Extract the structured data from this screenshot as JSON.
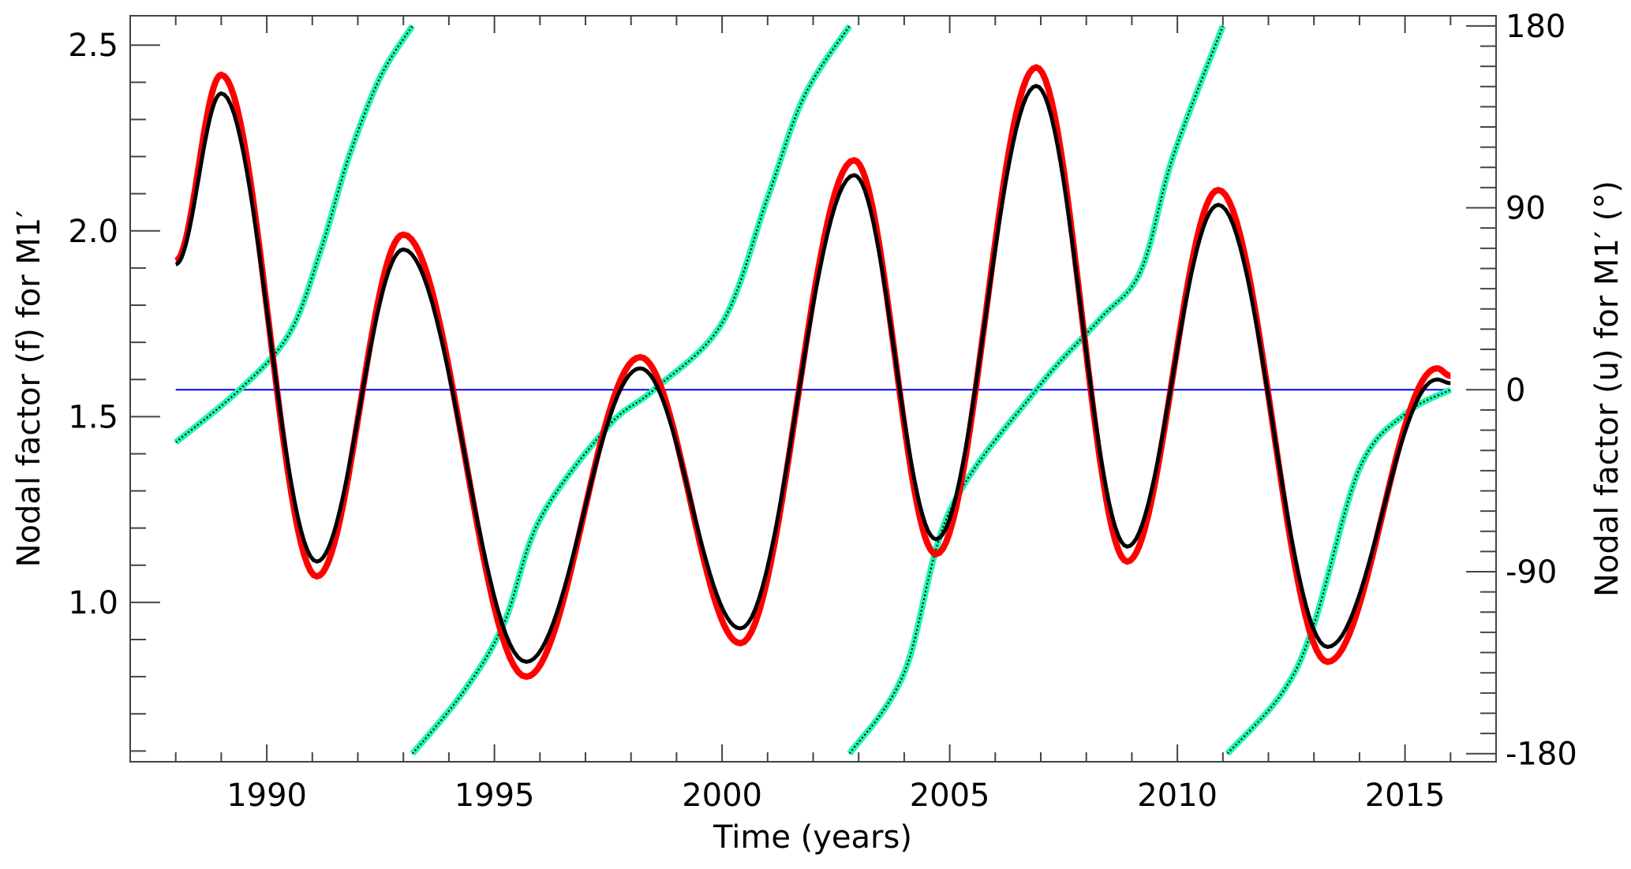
{
  "chart_data": {
    "type": "line",
    "xlabel": "Time (years)",
    "ylabel_left": "Nodal factor (f) for M1′",
    "ylabel_right": "Nodal factor (u) for M1′ (°)",
    "xlim": [
      1987,
      2017
    ],
    "ylim_left": [
      0.571,
      2.579
    ],
    "ylim_right": [
      -184,
      185
    ],
    "x_ticks": [
      "1990",
      "1995",
      "2000",
      "2005",
      "2010",
      "2015"
    ],
    "x_tick_values": [
      1990,
      1995,
      2000,
      2005,
      2010,
      2015
    ],
    "y_left_ticks": [
      "1.0",
      "1.5",
      "2.0",
      "2.5"
    ],
    "y_left_tick_values": [
      1.0,
      1.5,
      2.0,
      2.5
    ],
    "y_right_ticks": [
      "-180",
      "-90",
      "0",
      "90",
      "180"
    ],
    "y_right_tick_values": [
      -180,
      -90,
      0,
      90,
      180
    ],
    "grid": false,
    "series": [
      {
        "name": "f (red)",
        "axis": "left",
        "color": "#ff0000",
        "interp": "extrema",
        "points": [
          [
            1988.0,
            1.92
          ],
          [
            1989.0,
            2.42
          ],
          [
            1991.1,
            1.07
          ],
          [
            1993.0,
            1.99
          ],
          [
            1995.7,
            0.8
          ],
          [
            1998.2,
            1.66
          ],
          [
            2000.4,
            0.89
          ],
          [
            2002.9,
            2.19
          ],
          [
            2004.7,
            1.13
          ],
          [
            2006.9,
            2.44
          ],
          [
            2008.9,
            1.11
          ],
          [
            2010.9,
            2.11
          ],
          [
            2013.3,
            0.84
          ],
          [
            2015.7,
            1.63
          ],
          [
            2016.0,
            1.61
          ]
        ]
      },
      {
        "name": "f (black)",
        "axis": "left",
        "color": "#000000",
        "interp": "extrema",
        "points": [
          [
            1988.0,
            1.91
          ],
          [
            1989.0,
            2.37
          ],
          [
            1991.1,
            1.11
          ],
          [
            1993.0,
            1.95
          ],
          [
            1995.7,
            0.84
          ],
          [
            1998.2,
            1.63
          ],
          [
            2000.4,
            0.93
          ],
          [
            2002.9,
            2.15
          ],
          [
            2004.7,
            1.17
          ],
          [
            2006.9,
            2.39
          ],
          [
            2008.9,
            1.15
          ],
          [
            2010.9,
            2.07
          ],
          [
            2013.3,
            0.88
          ],
          [
            2015.7,
            1.6
          ],
          [
            2016.0,
            1.59
          ]
        ]
      },
      {
        "name": "u (green)",
        "axis": "right",
        "color": "#22f5b0",
        "interp": "smooth",
        "segments": [
          [
            [
              1988.0,
              -26
            ],
            [
              1989.4,
              0
            ],
            [
              1990.5,
              28
            ],
            [
              1991.2,
              70
            ],
            [
              1991.8,
              115
            ],
            [
              1992.5,
              155
            ],
            [
              1993.2,
              180
            ]
          ],
          [
            [
              1993.2,
              -180
            ],
            [
              1994.3,
              -150
            ],
            [
              1995.2,
              -116
            ],
            [
              1996.0,
              -64
            ],
            [
              1997.5,
              -18
            ],
            [
              1998.5,
              0
            ],
            [
              2000.0,
              33
            ],
            [
              2001.0,
              95
            ],
            [
              2001.8,
              145
            ],
            [
              2002.8,
              180
            ]
          ],
          [
            [
              2002.8,
              -180
            ],
            [
              2004.0,
              -140
            ],
            [
              2005.0,
              -60
            ],
            [
              2006.9,
              0
            ],
            [
              2008.3,
              35
            ],
            [
              2009.2,
              59
            ],
            [
              2009.9,
              115
            ],
            [
              2011.0,
              180
            ]
          ],
          [
            [
              2011.1,
              -180
            ],
            [
              2012.3,
              -150
            ],
            [
              2013.0,
              -116
            ],
            [
              2014.0,
              -39
            ],
            [
              2015.0,
              -12
            ],
            [
              2016.0,
              0
            ]
          ]
        ]
      },
      {
        "name": "zero line",
        "axis": "right",
        "color": "#0000ff",
        "points": [
          [
            1988.0,
            0
          ],
          [
            2016.0,
            0
          ]
        ]
      }
    ]
  }
}
